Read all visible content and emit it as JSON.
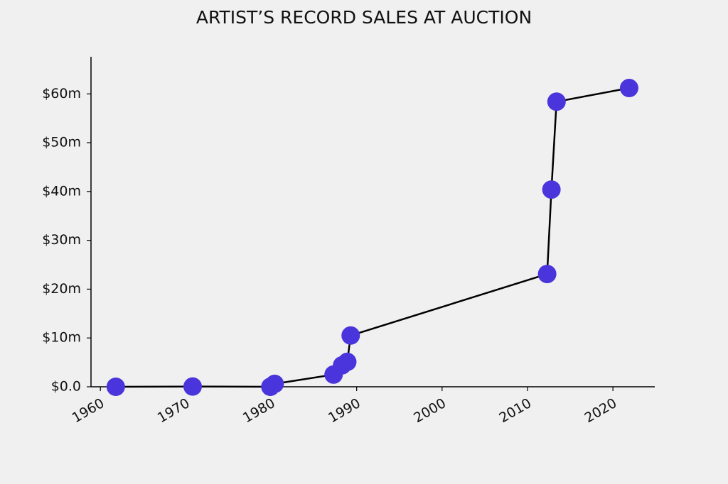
{
  "chart_data": {
    "type": "line",
    "title": "ARTIST’S RECORD SALES AT AUCTION",
    "x": [
      1961.8,
      1970.8,
      1979.9,
      1980.4,
      1987.3,
      1988.3,
      1988.9,
      1989.3,
      2012.3,
      2012.8,
      2013.4,
      2021.9
    ],
    "series": [
      {
        "color": "#4a34dc",
        "values": [
          0,
          0.05,
          0,
          0.6,
          2.5,
          4.4,
          5.1,
          10.5,
          23.1,
          40.4,
          58.4,
          61.2
        ]
      }
    ],
    "xlim": [
      1958.9,
      2024.9
    ],
    "xticks": [
      1960,
      1970,
      1980,
      1990,
      2000,
      2010,
      2020
    ],
    "ylim": [
      0,
      67.6
    ],
    "yticks": [
      {
        "value": 0,
        "label": "$0.0"
      },
      {
        "value": 10,
        "label": "$10m"
      },
      {
        "value": 20,
        "label": "$20m"
      },
      {
        "value": 30,
        "label": "$30m"
      },
      {
        "value": 40,
        "label": "$40m"
      },
      {
        "value": 50,
        "label": "$50m"
      },
      {
        "value": 60,
        "label": "$60m"
      }
    ],
    "grid": false
  }
}
